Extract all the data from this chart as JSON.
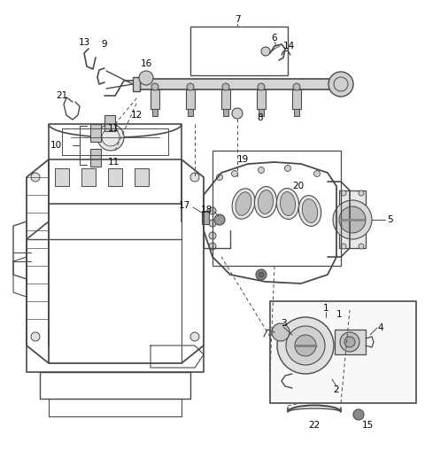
{
  "bg_color": "#ffffff",
  "line_color": "#4a4a4a",
  "text_color": "#000000",
  "label_fontsize": 7.5,
  "fig_width": 4.8,
  "fig_height": 5.26,
  "dpi": 100
}
